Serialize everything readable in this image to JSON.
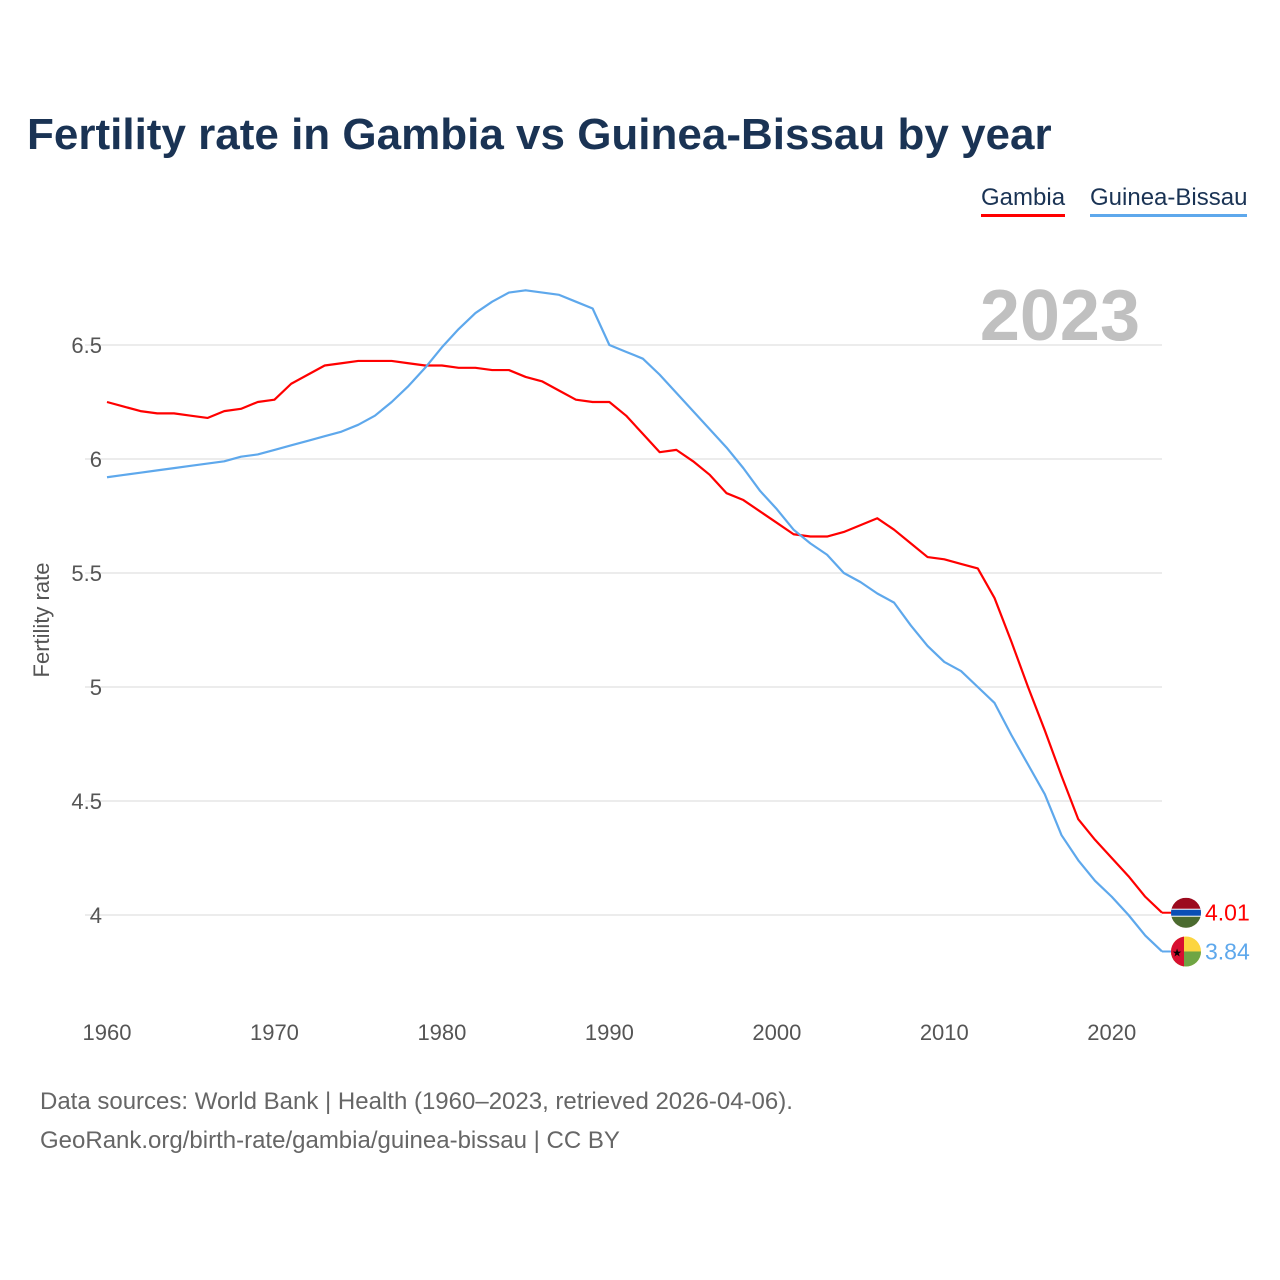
{
  "chart_data": {
    "type": "line",
    "title": "Fertility rate in Gambia vs Guinea-Bissau by year",
    "xlabel": "",
    "ylabel": "Fertility rate",
    "xlim": [
      1960,
      2023
    ],
    "ylim": [
      3.75,
      6.85
    ],
    "x_ticks": [
      "1960",
      "1970",
      "1980",
      "1990",
      "2000",
      "2010",
      "2020"
    ],
    "y_ticks": [
      "4",
      "4.5",
      "5",
      "5.5",
      "6",
      "6.5"
    ],
    "grid": true,
    "current_year_label": "2023",
    "legend_position": "top-right",
    "x": [
      1960,
      1961,
      1962,
      1963,
      1964,
      1965,
      1966,
      1967,
      1968,
      1969,
      1970,
      1971,
      1972,
      1973,
      1974,
      1975,
      1976,
      1977,
      1978,
      1979,
      1980,
      1981,
      1982,
      1983,
      1984,
      1985,
      1986,
      1987,
      1988,
      1989,
      1990,
      1991,
      1992,
      1993,
      1994,
      1995,
      1996,
      1997,
      1998,
      1999,
      2000,
      2001,
      2002,
      2003,
      2004,
      2005,
      2006,
      2007,
      2008,
      2009,
      2010,
      2011,
      2012,
      2013,
      2014,
      2015,
      2016,
      2017,
      2018,
      2019,
      2020,
      2021,
      2022,
      2023
    ],
    "series": [
      {
        "name": "Gambia",
        "color": "#ff0000",
        "end_label": "4.01",
        "values": [
          6.25,
          6.23,
          6.21,
          6.2,
          6.2,
          6.19,
          6.18,
          6.21,
          6.22,
          6.25,
          6.26,
          6.33,
          6.37,
          6.41,
          6.42,
          6.43,
          6.43,
          6.43,
          6.42,
          6.41,
          6.41,
          6.4,
          6.4,
          6.39,
          6.39,
          6.36,
          6.34,
          6.3,
          6.26,
          6.25,
          6.25,
          6.19,
          6.11,
          6.03,
          6.04,
          5.99,
          5.93,
          5.85,
          5.82,
          5.77,
          5.72,
          5.67,
          5.66,
          5.66,
          5.68,
          5.71,
          5.74,
          5.69,
          5.63,
          5.57,
          5.56,
          5.54,
          5.52,
          5.39,
          5.2,
          5.0,
          4.81,
          4.61,
          4.42,
          4.33,
          4.25,
          4.17,
          4.08,
          4.01
        ]
      },
      {
        "name": "Guinea-Bissau",
        "color": "#5ea8ec",
        "end_label": "3.84",
        "values": [
          5.92,
          5.93,
          5.94,
          5.95,
          5.96,
          5.97,
          5.98,
          5.99,
          6.01,
          6.02,
          6.04,
          6.06,
          6.08,
          6.1,
          6.12,
          6.15,
          6.19,
          6.25,
          6.32,
          6.4,
          6.49,
          6.57,
          6.64,
          6.69,
          6.73,
          6.74,
          6.73,
          6.72,
          6.69,
          6.66,
          6.5,
          6.47,
          6.44,
          6.37,
          6.29,
          6.21,
          6.13,
          6.05,
          5.96,
          5.86,
          5.78,
          5.69,
          5.63,
          5.58,
          5.5,
          5.46,
          5.41,
          5.37,
          5.27,
          5.18,
          5.11,
          5.07,
          5.0,
          4.93,
          4.79,
          4.66,
          4.53,
          4.35,
          4.24,
          4.15,
          4.08,
          4.0,
          3.91,
          3.84
        ]
      }
    ]
  },
  "footer": {
    "line1": "Data sources: World Bank | Health (1960–2023, retrieved 2026-04-06).",
    "line2": "GeoRank.org/birth-rate/gambia/guinea-bissau | CC BY"
  }
}
